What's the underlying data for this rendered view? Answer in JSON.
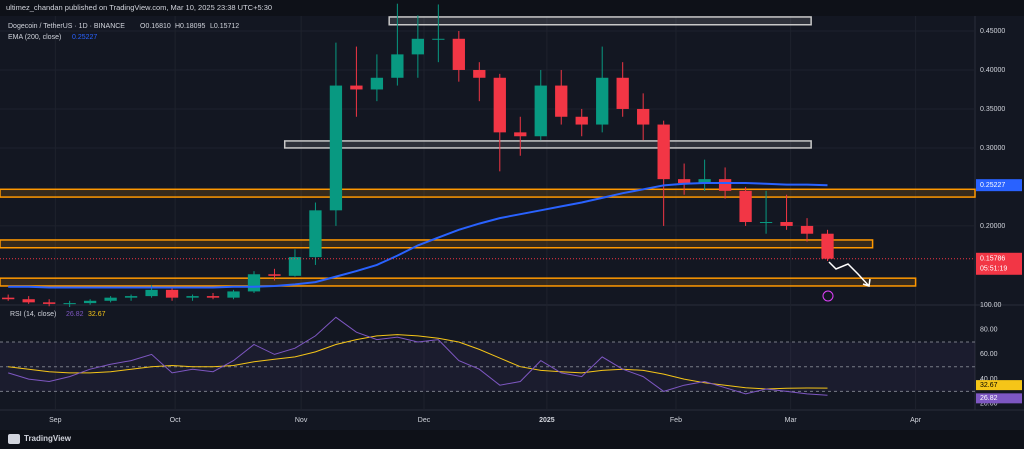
{
  "header": {
    "publisher": "ultimez_chandan published on TradingView.com, Mar 10, 2025 23:38 UTC+5:30",
    "brand": "TradingView"
  },
  "chart_data": [
    {
      "type": "candlestick",
      "title": "Dogecoin / TetherUS · 1D · BINANCE",
      "legend_values": [
        "O0.16810",
        "H0.18095",
        "L0.15712"
      ],
      "x": [
        0,
        1,
        2,
        3,
        4,
        5,
        6,
        7,
        8,
        9,
        10,
        11,
        12,
        13,
        14,
        15,
        16,
        17,
        18,
        19,
        20,
        21,
        22,
        23,
        24,
        25,
        26,
        27,
        28,
        29,
        30,
        31,
        32,
        33,
        34,
        35,
        36,
        37,
        38,
        39,
        40
      ],
      "open": [
        0.108,
        0.106,
        0.102,
        0.1,
        0.101,
        0.104,
        0.108,
        0.11,
        0.118,
        0.108,
        0.11,
        0.108,
        0.116,
        0.138,
        0.136,
        0.16,
        0.22,
        0.38,
        0.375,
        0.39,
        0.42,
        0.44,
        0.44,
        0.4,
        0.39,
        0.32,
        0.315,
        0.38,
        0.34,
        0.33,
        0.39,
        0.35,
        0.33,
        0.26,
        0.255,
        0.26,
        0.245,
        0.205,
        0.205,
        0.2,
        0.19
      ],
      "high": [
        0.112,
        0.11,
        0.106,
        0.104,
        0.106,
        0.11,
        0.112,
        0.124,
        0.12,
        0.112,
        0.114,
        0.118,
        0.142,
        0.145,
        0.17,
        0.23,
        0.435,
        0.43,
        0.42,
        0.485,
        0.47,
        0.484,
        0.45,
        0.41,
        0.395,
        0.34,
        0.4,
        0.4,
        0.35,
        0.43,
        0.41,
        0.37,
        0.335,
        0.28,
        0.285,
        0.275,
        0.25,
        0.245,
        0.24,
        0.21,
        0.195
      ],
      "low": [
        0.104,
        0.1,
        0.097,
        0.096,
        0.099,
        0.102,
        0.104,
        0.108,
        0.104,
        0.104,
        0.106,
        0.106,
        0.114,
        0.13,
        0.135,
        0.15,
        0.2,
        0.34,
        0.36,
        0.38,
        0.39,
        0.41,
        0.385,
        0.36,
        0.27,
        0.29,
        0.31,
        0.33,
        0.315,
        0.32,
        0.34,
        0.31,
        0.2,
        0.24,
        0.245,
        0.235,
        0.2,
        0.19,
        0.195,
        0.18,
        0.155
      ],
      "close": [
        0.106,
        0.102,
        0.1,
        0.101,
        0.104,
        0.108,
        0.11,
        0.118,
        0.108,
        0.11,
        0.108,
        0.116,
        0.138,
        0.136,
        0.16,
        0.22,
        0.38,
        0.375,
        0.39,
        0.42,
        0.44,
        0.44,
        0.4,
        0.39,
        0.32,
        0.315,
        0.38,
        0.34,
        0.33,
        0.39,
        0.35,
        0.33,
        0.26,
        0.255,
        0.26,
        0.245,
        0.205,
        0.205,
        0.2,
        0.19,
        0.158
      ],
      "up_color": "#089981",
      "down_color": "#f23645",
      "series": [
        {
          "name": "EMA (200, close)",
          "color": "#2962ff",
          "values": [
            0.122,
            0.122,
            0.121,
            0.121,
            0.121,
            0.121,
            0.121,
            0.121,
            0.121,
            0.121,
            0.121,
            0.122,
            0.122,
            0.123,
            0.125,
            0.128,
            0.135,
            0.142,
            0.15,
            0.162,
            0.175,
            0.185,
            0.195,
            0.203,
            0.21,
            0.215,
            0.22,
            0.225,
            0.23,
            0.236,
            0.242,
            0.247,
            0.252,
            0.254,
            0.255,
            0.255,
            0.255,
            0.254,
            0.253,
            0.253,
            0.25227
          ]
        }
      ],
      "last_price": 0.15786,
      "countdown": "05:51:19",
      "zones": [
        {
          "x": [
            18.6,
            39.2
          ],
          "y": [
            0.458,
            0.468
          ],
          "color": "#c8c8c8"
        },
        {
          "x": [
            13.5,
            39.2
          ],
          "y": [
            0.3,
            0.309
          ],
          "color": "#c8c8c8"
        },
        {
          "x": [
            -0.4,
            47.2
          ],
          "y": [
            0.237,
            0.247
          ],
          "color": "#ff9800"
        },
        {
          "x": [
            -0.4,
            42.2
          ],
          "y": [
            0.172,
            0.182
          ],
          "color": "#ff9800"
        },
        {
          "x": [
            -0.4,
            44.3
          ],
          "y": [
            0.123,
            0.133
          ],
          "color": "#ff9800"
        }
      ],
      "xlim": [
        -0.4,
        47.2
      ],
      "ylim": [
        0.105,
        0.4705
      ],
      "xticks": [
        {
          "value": 2.3,
          "label": "Sep"
        },
        {
          "value": 8.15,
          "label": "Oct"
        },
        {
          "value": 14.3,
          "label": "Nov"
        },
        {
          "value": 20.3,
          "label": "Dec"
        },
        {
          "value": 26.3,
          "label": "2025"
        },
        {
          "value": 32.6,
          "label": "Feb"
        },
        {
          "value": 38.2,
          "label": "Mar"
        },
        {
          "value": 44.3,
          "label": "Apr"
        }
      ],
      "yticks": [
        {
          "value": 0.2,
          "label": "0.20000"
        },
        {
          "value": 0.3,
          "label": "0.30000"
        },
        {
          "value": 0.35,
          "label": "0.35000"
        },
        {
          "value": 0.4,
          "label": "0.40000"
        },
        {
          "value": 0.45,
          "label": "0.45000"
        }
      ],
      "grid": true
    },
    {
      "type": "line",
      "title": "RSI (14, close)",
      "x": [
        0,
        1,
        2,
        3,
        4,
        5,
        6,
        7,
        8,
        9,
        10,
        11,
        12,
        13,
        14,
        15,
        16,
        17,
        18,
        19,
        20,
        21,
        22,
        23,
        24,
        25,
        26,
        27,
        28,
        29,
        30,
        31,
        32,
        33,
        34,
        35,
        36,
        37,
        38,
        39,
        40
      ],
      "series": [
        {
          "name": "RSI (14, close)",
          "color": "#7e57c2",
          "values": [
            45,
            40,
            38,
            42,
            48,
            52,
            55,
            60,
            45,
            48,
            46,
            55,
            68,
            60,
            65,
            75,
            90,
            78,
            72,
            74,
            70,
            72,
            55,
            48,
            35,
            38,
            55,
            45,
            42,
            58,
            48,
            42,
            30,
            35,
            38,
            33,
            28,
            32,
            30,
            28,
            26.82
          ]
        },
        {
          "color": "#f5c518",
          "values": [
            50,
            48,
            46,
            45,
            45,
            46,
            48,
            50,
            51,
            50,
            50,
            51,
            54,
            56,
            58,
            62,
            68,
            72,
            75,
            76,
            75,
            73,
            70,
            64,
            57,
            50,
            47,
            46,
            45,
            47,
            48,
            47,
            44,
            40,
            37,
            35,
            33,
            32,
            32.5,
            32.8,
            32.67
          ]
        }
      ],
      "band": [
        30,
        70
      ],
      "levels": [
        30,
        50,
        70
      ],
      "band_color": "#7e57c2",
      "xlim": [
        -0.4,
        47.2
      ],
      "ylim": [
        19,
        100
      ],
      "yticks": [
        {
          "value": 20,
          "label": "20.00"
        },
        {
          "value": 40,
          "label": "40.00"
        },
        {
          "value": 60,
          "label": "60.00"
        },
        {
          "value": 80,
          "label": "80.00"
        },
        {
          "value": 100,
          "label": "100.00"
        }
      ]
    }
  ]
}
